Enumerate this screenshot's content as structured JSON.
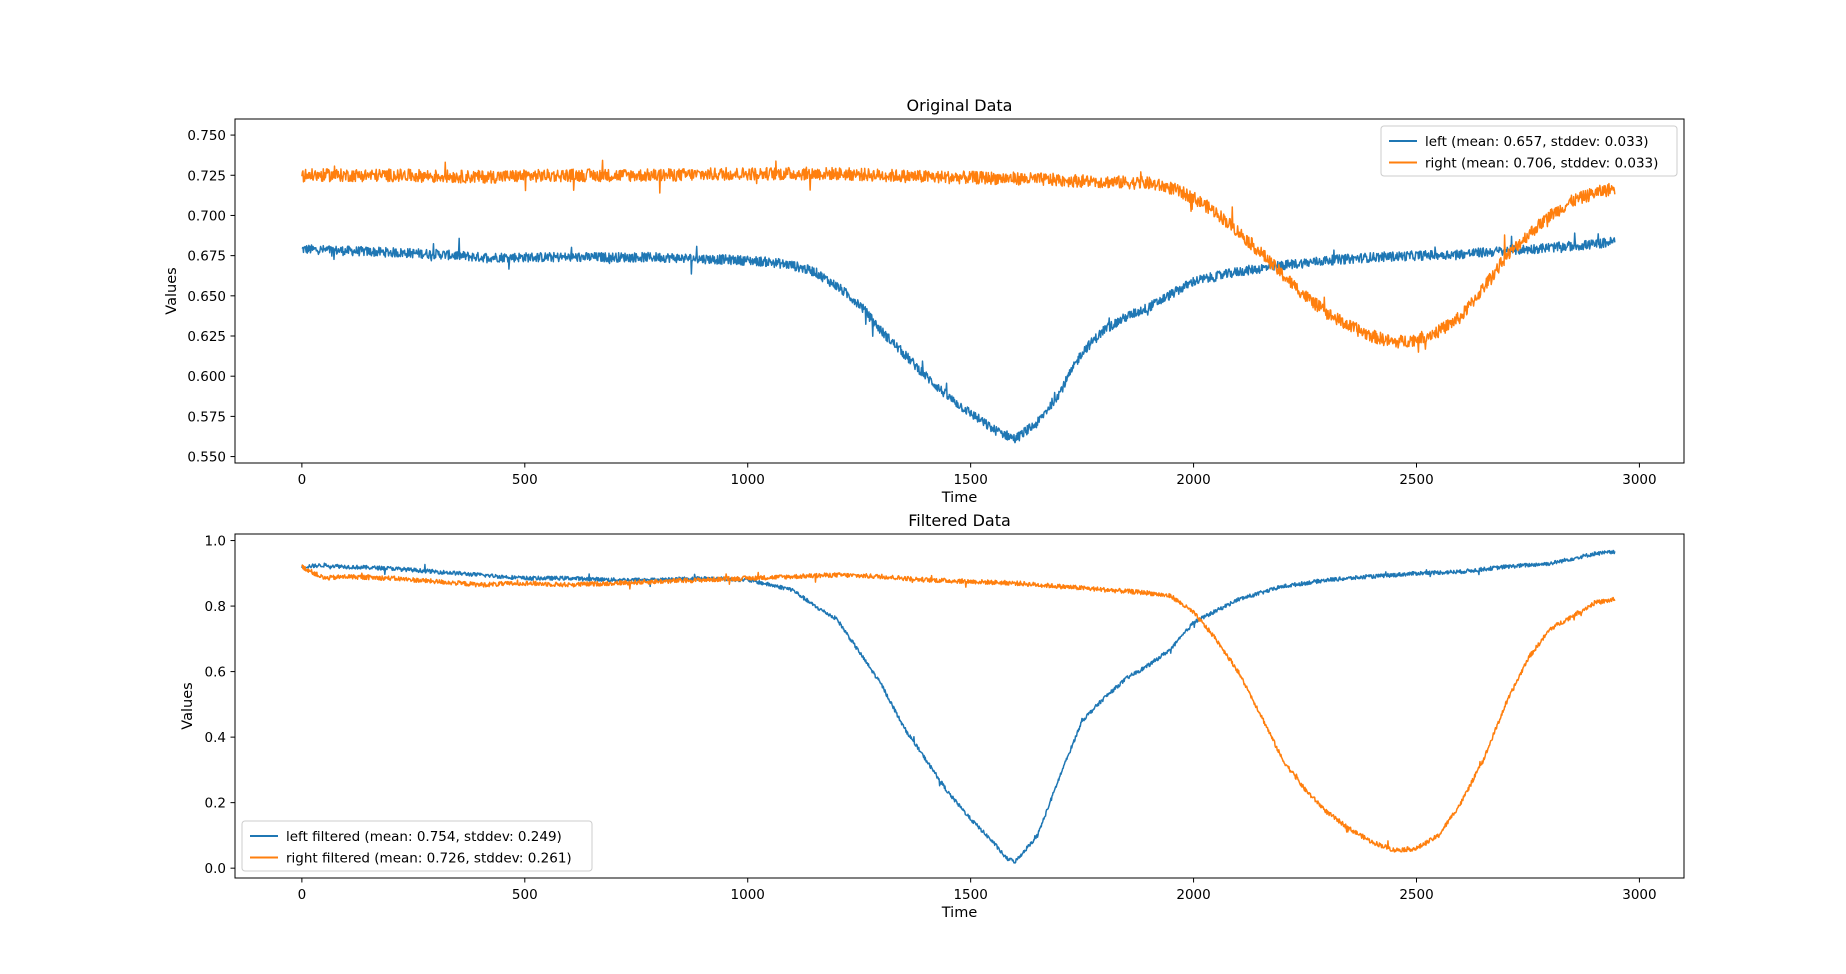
{
  "chart_data": [
    {
      "type": "line",
      "title": "Original Data",
      "xlabel": "Time",
      "ylabel": "Values",
      "xlim": [
        -150,
        3100
      ],
      "ylim": [
        0.546,
        0.76
      ],
      "xticks": [
        0,
        500,
        1000,
        1500,
        2000,
        2500,
        3000
      ],
      "yticks": [
        0.55,
        0.575,
        0.6,
        0.625,
        0.65,
        0.675,
        0.7,
        0.725,
        0.75
      ],
      "ytick_labels": [
        "0.550",
        "0.575",
        "0.600",
        "0.625",
        "0.650",
        "0.675",
        "0.700",
        "0.725",
        "0.750"
      ],
      "grid": false,
      "legend_position": "upper right",
      "series": [
        {
          "name": "left (mean: 0.657, stddev: 0.033)",
          "color": "#1f77b4",
          "noise": 0.003,
          "x": [
            0,
            100,
            200,
            300,
            400,
            500,
            600,
            700,
            800,
            900,
            1000,
            1050,
            1100,
            1150,
            1200,
            1250,
            1300,
            1350,
            1400,
            1450,
            1500,
            1550,
            1600,
            1650,
            1700,
            1750,
            1800,
            1850,
            1900,
            1950,
            2000,
            2100,
            2200,
            2300,
            2400,
            2500,
            2600,
            2700,
            2800,
            2900,
            2945
          ],
          "y": [
            0.679,
            0.678,
            0.677,
            0.676,
            0.674,
            0.674,
            0.674,
            0.674,
            0.674,
            0.673,
            0.672,
            0.671,
            0.669,
            0.665,
            0.656,
            0.645,
            0.628,
            0.614,
            0.6,
            0.587,
            0.577,
            0.567,
            0.561,
            0.571,
            0.59,
            0.615,
            0.629,
            0.637,
            0.643,
            0.651,
            0.659,
            0.665,
            0.669,
            0.672,
            0.674,
            0.675,
            0.676,
            0.678,
            0.68,
            0.682,
            0.684
          ]
        },
        {
          "name": "right (mean: 0.706, stddev: 0.033)",
          "color": "#ff7f0e",
          "noise": 0.004,
          "x": [
            0,
            200,
            400,
            600,
            800,
            1000,
            1200,
            1400,
            1600,
            1800,
            1900,
            1950,
            2000,
            2050,
            2100,
            2150,
            2200,
            2250,
            2300,
            2350,
            2400,
            2450,
            2500,
            2550,
            2600,
            2650,
            2700,
            2750,
            2800,
            2850,
            2900,
            2945
          ],
          "y": [
            0.725,
            0.725,
            0.724,
            0.725,
            0.725,
            0.726,
            0.726,
            0.724,
            0.723,
            0.721,
            0.72,
            0.717,
            0.711,
            0.702,
            0.69,
            0.677,
            0.663,
            0.65,
            0.639,
            0.631,
            0.625,
            0.621,
            0.623,
            0.628,
            0.637,
            0.655,
            0.674,
            0.688,
            0.7,
            0.709,
            0.714,
            0.717
          ]
        }
      ]
    },
    {
      "type": "line",
      "title": "Filtered Data",
      "xlabel": "Time",
      "ylabel": "Values",
      "xlim": [
        -150,
        3100
      ],
      "ylim": [
        -0.03,
        1.02
      ],
      "xticks": [
        0,
        500,
        1000,
        1500,
        2000,
        2500,
        3000
      ],
      "yticks": [
        0.0,
        0.2,
        0.4,
        0.6,
        0.8,
        1.0
      ],
      "ytick_labels": [
        "0.0",
        "0.2",
        "0.4",
        "0.6",
        "0.8",
        "1.0"
      ],
      "grid": false,
      "legend_position": "lower left",
      "series": [
        {
          "name": "left filtered (mean: 0.754, stddev: 0.249)",
          "color": "#1f77b4",
          "noise": 0.006,
          "x": [
            0,
            50,
            100,
            200,
            300,
            400,
            500,
            600,
            700,
            800,
            900,
            1000,
            1050,
            1100,
            1150,
            1200,
            1250,
            1300,
            1350,
            1400,
            1450,
            1500,
            1550,
            1580,
            1600,
            1650,
            1700,
            1750,
            1800,
            1850,
            1900,
            1950,
            2000,
            2100,
            2200,
            2300,
            2400,
            2500,
            2600,
            2700,
            2800,
            2900,
            2945
          ],
          "y": [
            0.92,
            0.925,
            0.92,
            0.915,
            0.905,
            0.895,
            0.885,
            0.885,
            0.88,
            0.88,
            0.885,
            0.88,
            0.865,
            0.85,
            0.8,
            0.76,
            0.66,
            0.56,
            0.43,
            0.33,
            0.23,
            0.15,
            0.08,
            0.03,
            0.02,
            0.1,
            0.28,
            0.45,
            0.52,
            0.58,
            0.62,
            0.67,
            0.75,
            0.82,
            0.86,
            0.88,
            0.89,
            0.9,
            0.905,
            0.92,
            0.93,
            0.96,
            0.965
          ]
        },
        {
          "name": "right filtered (mean: 0.726, stddev: 0.261)",
          "color": "#ff7f0e",
          "noise": 0.007,
          "x": [
            0,
            50,
            100,
            200,
            300,
            400,
            500,
            600,
            700,
            800,
            900,
            1000,
            1100,
            1200,
            1300,
            1400,
            1500,
            1600,
            1700,
            1800,
            1900,
            1950,
            2000,
            2050,
            2100,
            2150,
            2200,
            2250,
            2300,
            2350,
            2400,
            2450,
            2500,
            2550,
            2600,
            2650,
            2700,
            2750,
            2800,
            2850,
            2900,
            2945
          ],
          "y": [
            0.92,
            0.885,
            0.89,
            0.885,
            0.875,
            0.865,
            0.87,
            0.865,
            0.87,
            0.875,
            0.88,
            0.885,
            0.89,
            0.895,
            0.89,
            0.88,
            0.875,
            0.87,
            0.86,
            0.85,
            0.84,
            0.83,
            0.78,
            0.7,
            0.6,
            0.47,
            0.33,
            0.24,
            0.17,
            0.12,
            0.08,
            0.055,
            0.06,
            0.1,
            0.2,
            0.33,
            0.5,
            0.64,
            0.73,
            0.77,
            0.81,
            0.82
          ]
        }
      ]
    }
  ]
}
